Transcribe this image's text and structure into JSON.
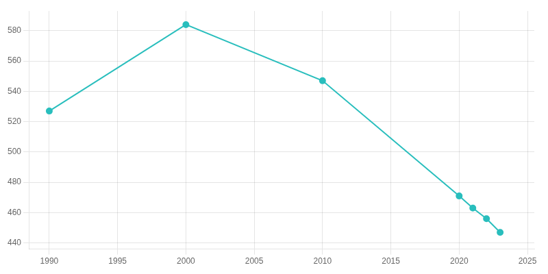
{
  "chart_data": {
    "type": "line",
    "x": [
      1990,
      2000,
      2010,
      2020,
      2021,
      2022,
      2023
    ],
    "values": [
      527,
      584,
      547,
      471,
      463,
      456,
      447
    ],
    "color": "#29BEBD",
    "marker": "circle",
    "xlim": [
      1988.5,
      2025.5
    ],
    "ylim": [
      436,
      593
    ],
    "xticks": [
      1990,
      1995,
      2000,
      2005,
      2010,
      2015,
      2020,
      2025
    ],
    "yticks": [
      440,
      460,
      480,
      500,
      520,
      540,
      560,
      580
    ],
    "grid": true
  }
}
